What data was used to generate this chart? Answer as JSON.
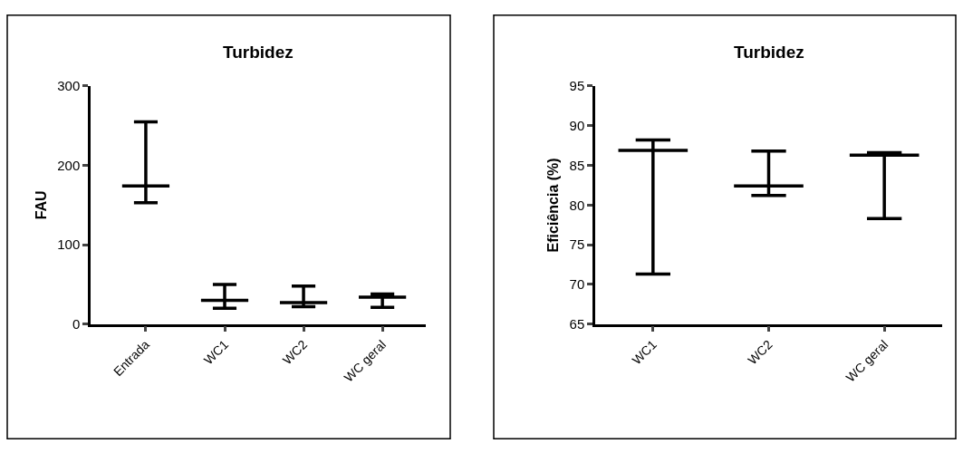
{
  "chart_data": [
    {
      "type": "box",
      "title": "Turbidez",
      "ylabel": "FAU",
      "categories": [
        "Entrada",
        "WC1",
        "WC2",
        "WC geral"
      ],
      "boxes": [
        {
          "low": 153,
          "q1": 174,
          "median": 174,
          "q3": 174,
          "high": 255
        },
        {
          "low": 20,
          "q1": 30,
          "median": 30,
          "q3": 30,
          "high": 50
        },
        {
          "low": 22,
          "q1": 27,
          "median": 27,
          "q3": 27,
          "high": 48
        },
        {
          "low": 21,
          "q1": 34,
          "median": 34,
          "q3": 34,
          "high": 38
        }
      ],
      "color": "#000000",
      "ylim": [
        0,
        300
      ],
      "yticks": [
        0,
        100,
        200,
        300
      ]
    },
    {
      "type": "box",
      "title": "Turbidez",
      "ylabel": "Eficiência (%)",
      "categories": [
        "WC1",
        "WC2",
        "WC geral"
      ],
      "boxes": [
        {
          "low": 71.3,
          "q1": 86.9,
          "median": 86.9,
          "q3": 86.9,
          "high": 88.2
        },
        {
          "low": 81.2,
          "q1": 82.4,
          "median": 82.4,
          "q3": 82.4,
          "high": 86.8
        },
        {
          "low": 78.3,
          "q1": 86.3,
          "median": 86.3,
          "q3": 86.3,
          "high": 86.6
        }
      ],
      "color": "#000000",
      "ylim": [
        65,
        95
      ],
      "yticks": [
        65,
        70,
        75,
        80,
        85,
        90,
        95
      ]
    }
  ]
}
